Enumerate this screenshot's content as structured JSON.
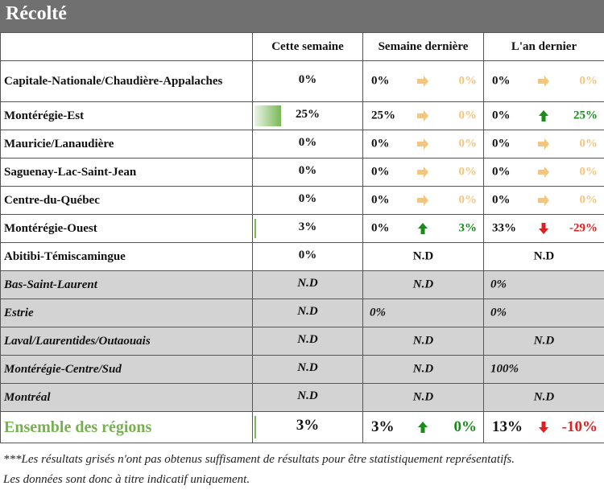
{
  "title": "Récolté",
  "columns": [
    "Cette semaine",
    "Semaine dernière",
    "L'an dernier"
  ],
  "colors": {
    "header_bg": "#707070",
    "grey_row": "#d3d3d3",
    "green": "#1a8c1a",
    "red": "#e02020",
    "muted": "#f2c67f",
    "accent": "#77b053"
  },
  "rows": [
    {
      "region": "Capitale-Nationale/Chaudière-Appalaches",
      "this_week": "0%",
      "last_week": "0%",
      "last_week_change": "0%",
      "last_week_arrow": "right-arrow-icon",
      "last_year": "0%",
      "last_year_change": "0%",
      "last_year_arrow": "right-arrow-icon"
    },
    {
      "region": "Montérégie-Est",
      "this_week": "25%",
      "this_week_fill": 0.25,
      "last_week": "25%",
      "last_week_change": "0%",
      "last_week_arrow": "right-arrow-icon",
      "last_year": "0%",
      "last_year_change": "25%",
      "last_year_arrow": "up-arrow-icon"
    },
    {
      "region": "Mauricie/Lanaudière",
      "this_week": "0%",
      "last_week": "0%",
      "last_week_change": "0%",
      "last_week_arrow": "right-arrow-icon",
      "last_year": "0%",
      "last_year_change": "0%",
      "last_year_arrow": "right-arrow-icon"
    },
    {
      "region": "Saguenay-Lac-Saint-Jean",
      "this_week": "0%",
      "last_week": "0%",
      "last_week_change": "0%",
      "last_week_arrow": "right-arrow-icon",
      "last_year": "0%",
      "last_year_change": "0%",
      "last_year_arrow": "right-arrow-icon"
    },
    {
      "region": "Centre-du-Québec",
      "this_week": "0%",
      "last_week": "0%",
      "last_week_change": "0%",
      "last_week_arrow": "right-arrow-icon",
      "last_year": "0%",
      "last_year_change": "0%",
      "last_year_arrow": "right-arrow-icon"
    },
    {
      "region": "Montérégie-Ouest",
      "this_week": "3%",
      "this_week_fill": 0.03,
      "last_week": "0%",
      "last_week_change": "3%",
      "last_week_arrow": "up-arrow-icon",
      "last_year": "33%",
      "last_year_change": "-29%",
      "last_year_arrow": "down-arrow-icon"
    },
    {
      "region": "Abitibi-Témiscamingue",
      "this_week": "0%",
      "last_week_nd": "N.D",
      "last_year_nd": "N.D"
    },
    {
      "region": "Bas-Saint-Laurent",
      "this_week": "N.D",
      "last_week_nd": "N.D",
      "last_year": "0%"
    },
    {
      "region": "Estrie",
      "this_week": "N.D",
      "last_week": "0%",
      "last_year": "0%"
    },
    {
      "region": "Laval/Laurentides/Outaouais",
      "this_week": "N.D",
      "last_week_nd": "N.D",
      "last_year_nd": "N.D"
    },
    {
      "region": "Montérégie-Centre/Sud",
      "this_week": "N.D",
      "last_week_nd": "N.D",
      "last_year": "100%"
    },
    {
      "region": "Montréal",
      "this_week": "N.D",
      "last_week_nd": "N.D",
      "last_year_nd": "N.D"
    }
  ],
  "total": {
    "region": "Ensemble des régions",
    "this_week": "3%",
    "this_week_fill": 0.03,
    "last_week": "3%",
    "last_week_change": "0%",
    "last_week_arrow": "up-arrow-icon",
    "last_year": "13%",
    "last_year_change": "-10%",
    "last_year_arrow": "down-arrow-icon"
  },
  "footnote_line1": "***Les résultats grisés n'ont pas obtenus suffisament de résultats pour être statistiquement représentatifs.",
  "footnote_line2": "Les données sont donc à titre indicatif uniquement."
}
